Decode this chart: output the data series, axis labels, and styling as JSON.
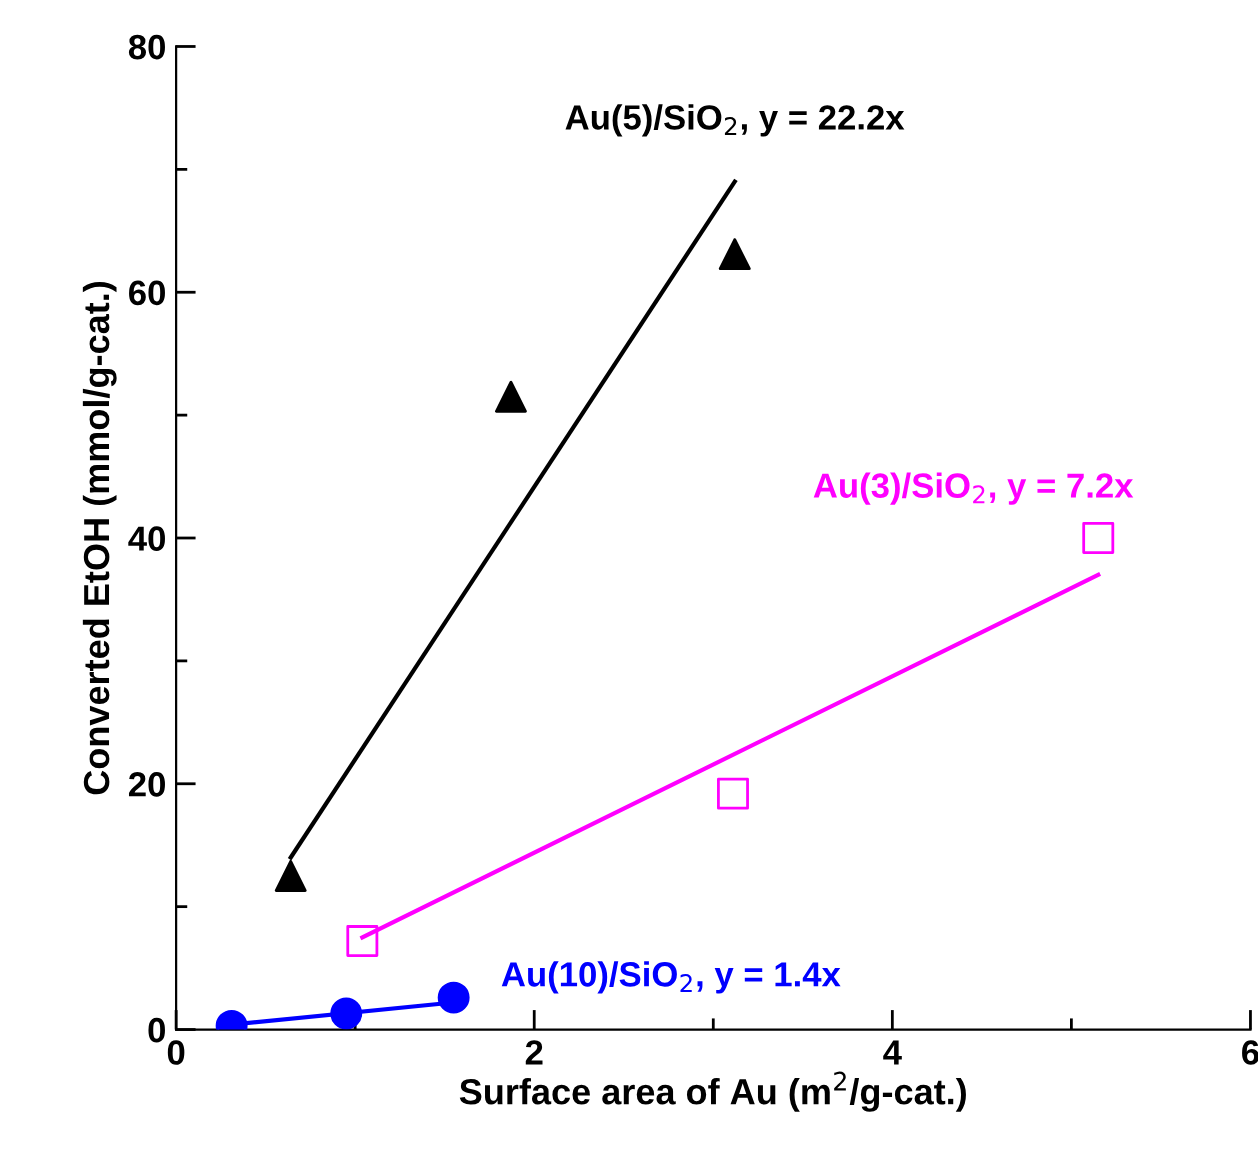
{
  "chart_data": {
    "type": "scatter",
    "xlabel": "Surface area of Au (m$^{2}$/g-cat.)",
    "ylabel": "Converted EtOH (mmol/g-cat.)",
    "xlim": [
      0,
      6
    ],
    "ylim": [
      0,
      80
    ],
    "xticks": [
      0,
      2,
      4,
      6
    ],
    "yticks": [
      0,
      20,
      40,
      60,
      80
    ],
    "grid": false,
    "legend": false,
    "series": [
      {
        "marker": "triangle",
        "color": "#000000",
        "x": [
          0.64,
          1.87,
          3.12
        ],
        "values": [
          12.5,
          51.5,
          63.1
        ]
      },
      {
        "marker": "square",
        "color": "#ff00ff",
        "x": [
          1.04,
          3.11,
          5.15
        ],
        "values": [
          7.2,
          19.2,
          40.0
        ]
      },
      {
        "marker": "circle",
        "color": "#0000ff",
        "x": [
          0.31,
          0.95,
          1.55
        ],
        "values": [
          0.3,
          1.3,
          2.6
        ]
      },
      {
        "type": "line",
        "name": "Au(5)/SiO$_{2}$, y = 22.2x",
        "color": "#000000",
        "x": [
          0.64,
          3.12
        ],
        "values": [
          14,
          69
        ]
      },
      {
        "type": "line",
        "name": "Au(3)/SiO$_{2}$, y = 7.2x",
        "color": "#ff00ff",
        "x": [
          1.04,
          5.15
        ],
        "values": [
          7.5,
          37
        ]
      },
      {
        "type": "line",
        "name": "Au(10)/SiO$_{2}$, y = 1.4x",
        "color": "#0000ff",
        "x": [
          0.31,
          1.55
        ],
        "values": [
          0.4,
          2.2
        ]
      }
    ]
  }
}
